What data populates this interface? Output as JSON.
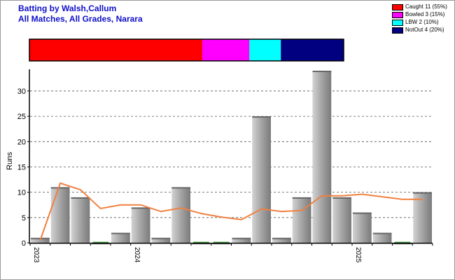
{
  "header": {
    "title": "Batting by Walsh,Callum",
    "subtitle": "All Matches, All Grades, Narara"
  },
  "legend": [
    {
      "label": "Caught 11 (55%)",
      "color": "#ff0000",
      "value": 55
    },
    {
      "label": "Bowled 3 (15%)",
      "color": "#ff00ff",
      "value": 15
    },
    {
      "label": "LBW 2 (10%)",
      "color": "#00ffff",
      "value": 10
    },
    {
      "label": "NotOut 4 (20%)",
      "color": "#000080",
      "value": 20
    }
  ],
  "chart_data": {
    "type": "bar",
    "ylabel": "Runs",
    "ylim": [
      0,
      34
    ],
    "yticks": [
      0,
      5,
      10,
      15,
      20,
      25,
      30
    ],
    "grid": true,
    "x_tick_labels": [
      {
        "label": "2023",
        "index": 0
      },
      {
        "label": "2024",
        "index": 5
      },
      {
        "label": "2025",
        "index": 16
      }
    ],
    "series": [
      {
        "type": "bar",
        "values": [
          1,
          11,
          9,
          0,
          2,
          7,
          1,
          11,
          0,
          0,
          1,
          25,
          1,
          9,
          34,
          9,
          6,
          2,
          0,
          10
        ]
      },
      {
        "type": "line",
        "color": "#f08040",
        "values": [
          0.5,
          11.8,
          10.5,
          6.8,
          7.5,
          7.5,
          6.2,
          6.9,
          5.8,
          5.1,
          4.6,
          6.7,
          6.2,
          6.4,
          9.3,
          9.3,
          9.6,
          9.1,
          8.6,
          8.6
        ]
      }
    ]
  }
}
